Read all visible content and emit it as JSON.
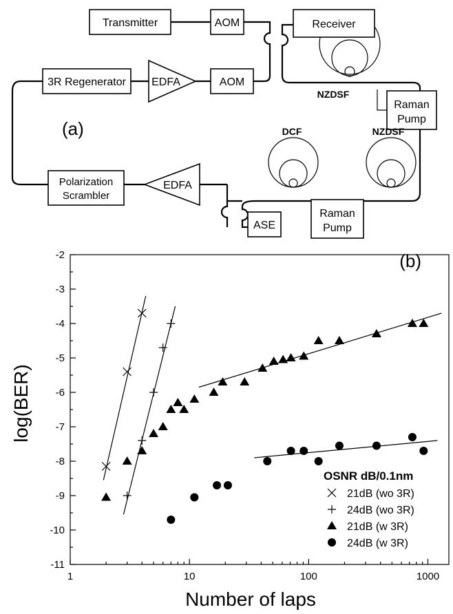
{
  "diagram": {
    "panel_label": "(a)",
    "components": {
      "transmitter": "Transmitter",
      "aom_top": "AOM",
      "aom_mid": "AOM",
      "receiver": "Receiver",
      "regenerator": "3R Regenerator",
      "edfa_top": "EDFA",
      "nzdsf_top": "NZDSF",
      "raman_pump_top": [
        "Raman",
        "Pump"
      ],
      "dcf": "DCF",
      "nzdsf_bottom": "NZDSF",
      "polarization_scrambler": [
        "Polarization",
        "Scrambler"
      ],
      "edfa_bottom": "EDFA",
      "ase": "ASE",
      "raman_pump_bottom": [
        "Raman",
        "Pump"
      ]
    }
  },
  "chart_data": {
    "type": "scatter",
    "panel_label": "(b)",
    "xlabel": "Number of laps",
    "ylabel": "log(BER)",
    "x_scale": "log",
    "xlim": [
      1,
      1500
    ],
    "ylim": [
      -11,
      -2
    ],
    "x_ticks": [
      1,
      10,
      100,
      1000
    ],
    "x_tick_labels": [
      "1",
      "10",
      "100",
      "1000"
    ],
    "y_ticks": [
      -2,
      -3,
      -4,
      -5,
      -6,
      -7,
      -8,
      -9,
      -10,
      -11
    ],
    "y_tick_labels": [
      "-2",
      "-3",
      "-4",
      "-5",
      "-6",
      "-7",
      "-8",
      "-9",
      "-10",
      "-11"
    ],
    "legend_title": "OSNR dB/0.1nm",
    "legend_position": "bottom-right",
    "series": [
      {
        "name": "21dB (wo 3R)",
        "marker": "cross",
        "points": [
          [
            2,
            -8.15
          ],
          [
            3,
            -5.4
          ],
          [
            4,
            -3.7
          ]
        ],
        "fit": [
          [
            1.9,
            -8.55
          ],
          [
            4.3,
            -3.2
          ]
        ]
      },
      {
        "name": "24dB (wo 3R)",
        "marker": "plus",
        "points": [
          [
            3,
            -9.0
          ],
          [
            4,
            -7.4
          ],
          [
            5,
            -6.0
          ],
          [
            6,
            -4.7
          ],
          [
            7,
            -4.0
          ]
        ],
        "fit": [
          [
            2.8,
            -9.55
          ],
          [
            7.6,
            -3.5
          ]
        ]
      },
      {
        "name": "21dB (w 3R)",
        "marker": "triangle",
        "points": [
          [
            2,
            -9.05
          ],
          [
            3,
            -8.0
          ],
          [
            4,
            -7.7
          ],
          [
            5,
            -7.2
          ],
          [
            6,
            -7.0
          ],
          [
            7,
            -6.5
          ],
          [
            8,
            -6.3
          ],
          [
            9,
            -6.5
          ],
          [
            11,
            -6.2
          ],
          [
            16,
            -6.0
          ],
          [
            19,
            -5.7
          ],
          [
            29,
            -5.7
          ],
          [
            41,
            -5.3
          ],
          [
            51,
            -5.1
          ],
          [
            61,
            -5.05
          ],
          [
            71,
            -5.0
          ],
          [
            91,
            -4.95
          ],
          [
            121,
            -4.5
          ],
          [
            181,
            -4.5
          ],
          [
            371,
            -4.3
          ],
          [
            741,
            -4.0
          ],
          [
            921,
            -4.0
          ]
        ],
        "fit": [
          [
            12,
            -5.85
          ],
          [
            1300,
            -3.7
          ]
        ]
      },
      {
        "name": "24dB (w 3R)",
        "marker": "circle",
        "points": [
          [
            7,
            -9.7
          ],
          [
            11,
            -9.05
          ],
          [
            17,
            -8.7
          ],
          [
            21,
            -8.7
          ],
          [
            45,
            -8.0
          ],
          [
            71,
            -7.7
          ],
          [
            91,
            -7.7
          ],
          [
            121,
            -8.0
          ],
          [
            181,
            -7.55
          ],
          [
            371,
            -7.55
          ],
          [
            741,
            -7.3
          ],
          [
            921,
            -7.7
          ]
        ],
        "fit": [
          [
            35,
            -7.9
          ],
          [
            1200,
            -7.4
          ]
        ]
      }
    ]
  }
}
